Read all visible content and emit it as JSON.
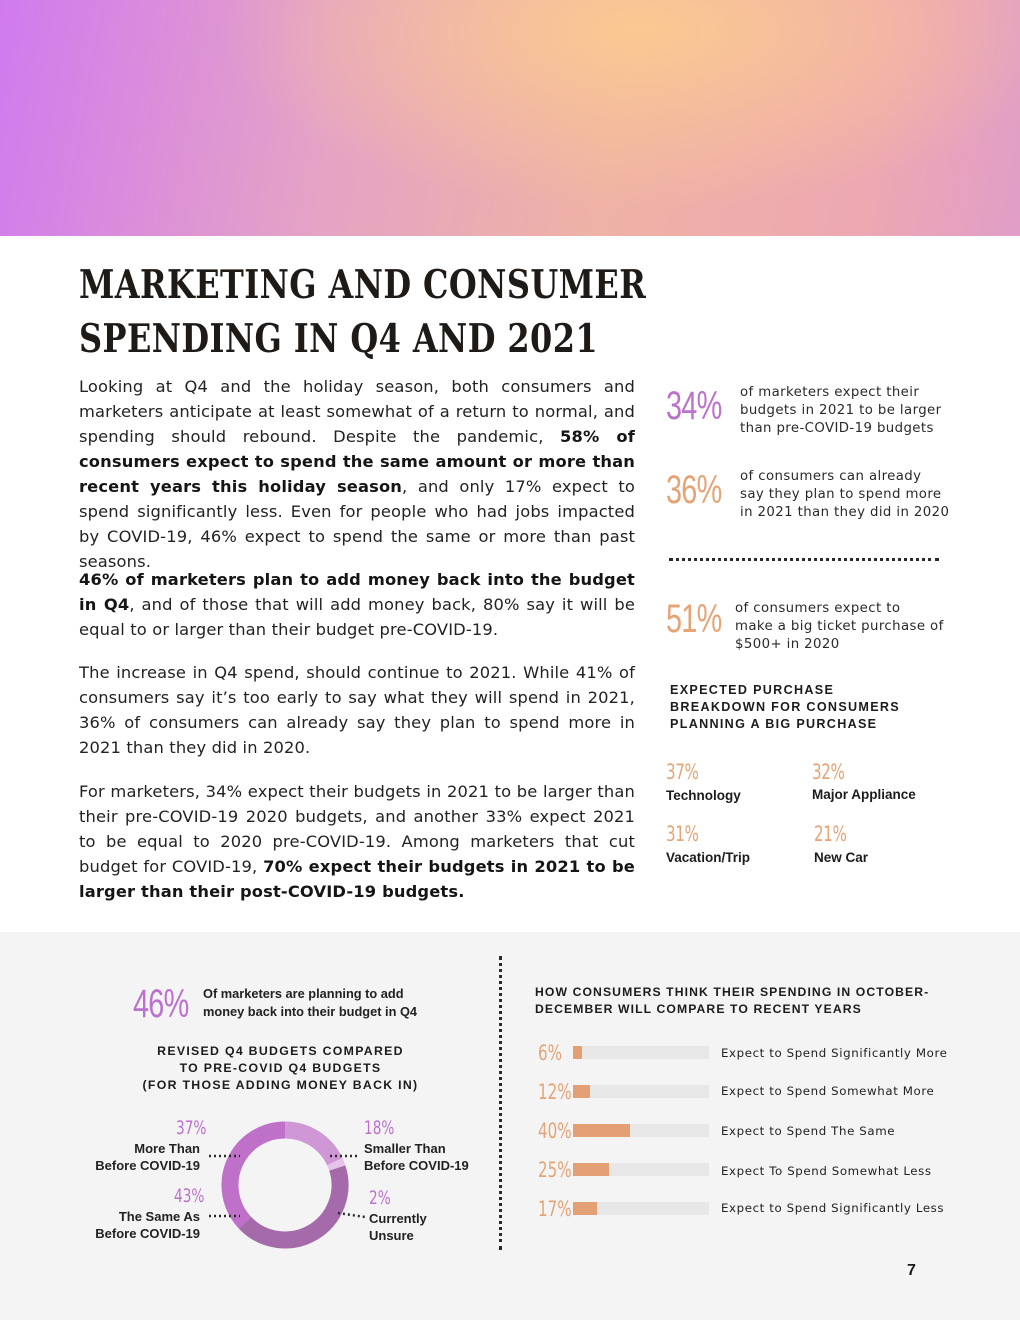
{
  "title": {
    "line1": "MARKETING AND CONSUMER",
    "line2": "SPENDING IN Q4 AND 2021"
  },
  "body": {
    "p1": {
      "t1": "Looking at Q4 and the holiday season, both consumers and marketers anticipate at least somewhat of a return to normal, and spending should rebound. Despite the pandemic, ",
      "b1": "58% of consumers expect to spend the same amount or more than recent years this holiday season",
      "t2": ", and only 17% expect to spend significantly less. Even for people who had jobs impacted by COVID-19, 46% expect to spend the same or more than past seasons."
    },
    "p2": {
      "b1": "46% of marketers plan to add money back into the budget in Q4",
      "t1": ", and of those that will add money back, 80% say it will be equal to or larger than their budget pre-COVID-19."
    },
    "p3": {
      "t1": "The increase in Q4 spend, should continue to 2021. While 41% of consumers say it’s too early to say what they will spend in 2021, 36% of consumers can already say they plan to spend more in 2021 than they did in 2020."
    },
    "p4": {
      "t1": "For marketers, 34% expect their budgets in 2021 to be larger than their pre-COVID-19 2020 budgets, and another 33% expect 2021 to be equal to 2020 pre-COVID-19. Among marketers that cut budget for COVID-19, ",
      "b1": "70% expect their budgets in 2021 to be larger than their post-COVID-19 budgets."
    }
  },
  "sidebar": {
    "stats": [
      {
        "pct": "34%",
        "line1": "of marketers expect their",
        "line2": "budgets in 2021 to be larger",
        "line3": "than pre-COVID-19 budgets"
      },
      {
        "pct": "36%",
        "line1": "of consumers can already",
        "line2": "say they plan to spend more",
        "line3": "in 2021 than they did in 2020"
      },
      {
        "pct": "51%",
        "line1": "of consumers expect to",
        "line2": "make a big ticket purchase of",
        "line3": "$500+ in 2020"
      }
    ],
    "breakdown_heading": {
      "line1": "EXPECTED PURCHASE",
      "line2": "BREAKDOWN FOR CONSUMERS",
      "line3": "PLANNING A BIG PURCHASE"
    },
    "breakdown": [
      {
        "pct": "37%",
        "label": "Technology"
      },
      {
        "pct": "32%",
        "label": "Major Appliance"
      },
      {
        "pct": "31%",
        "label": "Vacation/Trip"
      },
      {
        "pct": "21%",
        "label": "New Car"
      }
    ]
  },
  "bottom_left": {
    "pct": "46%",
    "caption": {
      "line1": "Of marketers are planning to add",
      "line2": "money back into their budget in Q4"
    },
    "chart_heading": {
      "line1": "REVISED Q4 BUDGETS COMPARED",
      "line2": "TO PRE-COVID Q4 BUDGETS",
      "line3": "(FOR THOSE ADDING MONEY BACK IN)"
    }
  },
  "bottom_right": {
    "heading": {
      "line1": "HOW CONSUMERS THINK THEIR SPENDING IN OCTOBER-",
      "line2": "DECEMBER WILL COMPARE TO RECENT YEARS"
    }
  },
  "colors": {
    "purple": "#bb72cd",
    "orange": "#e5a476",
    "bar": "#e3a074",
    "ring1": "#bf71c9",
    "ring2": "#a56aa9",
    "ring3": "#cf97d6",
    "ring4": "#e6c3ea"
  },
  "page_number": "7",
  "chart_data": [
    {
      "type": "pie",
      "title": "REVISED Q4 BUDGETS COMPARED TO PRE-COVID Q4 BUDGETS (FOR THOSE ADDING MONEY BACK IN)",
      "series": [
        {
          "name": "More Than Before COVID-19",
          "pct": "37%",
          "line1": "More Than",
          "line2": "Before COVID-19",
          "value": 37
        },
        {
          "name": "The Same As Before COVID-19",
          "pct": "43%",
          "line1": "The Same As",
          "line2": "Before COVID-19",
          "value": 43
        },
        {
          "name": "Smaller Than Before COVID-19",
          "pct": "18%",
          "line1": "Smaller Than",
          "line2": "Before COVID-19",
          "value": 18
        },
        {
          "name": "Currently Unsure",
          "pct": "2%",
          "line1": "Currently",
          "line2": "Unsure",
          "value": 2
        }
      ]
    },
    {
      "type": "bar",
      "title": "HOW CONSUMERS THINK THEIR SPENDING IN OCTOBER-DECEMBER WILL COMPARE TO RECENT YEARS",
      "categories": [
        "Expect to Spend Significantly More",
        "Expect to Spend Somewhat More",
        "Expect to Spend The Same",
        "Expect To Spend Somewhat Less",
        "Expect to Spend Significantly Less"
      ],
      "labels": [
        "6%",
        "12%",
        "40%",
        "25%",
        "17%"
      ],
      "values": [
        6,
        12,
        40,
        25,
        17
      ],
      "ylim": [
        0,
        100
      ]
    }
  ]
}
